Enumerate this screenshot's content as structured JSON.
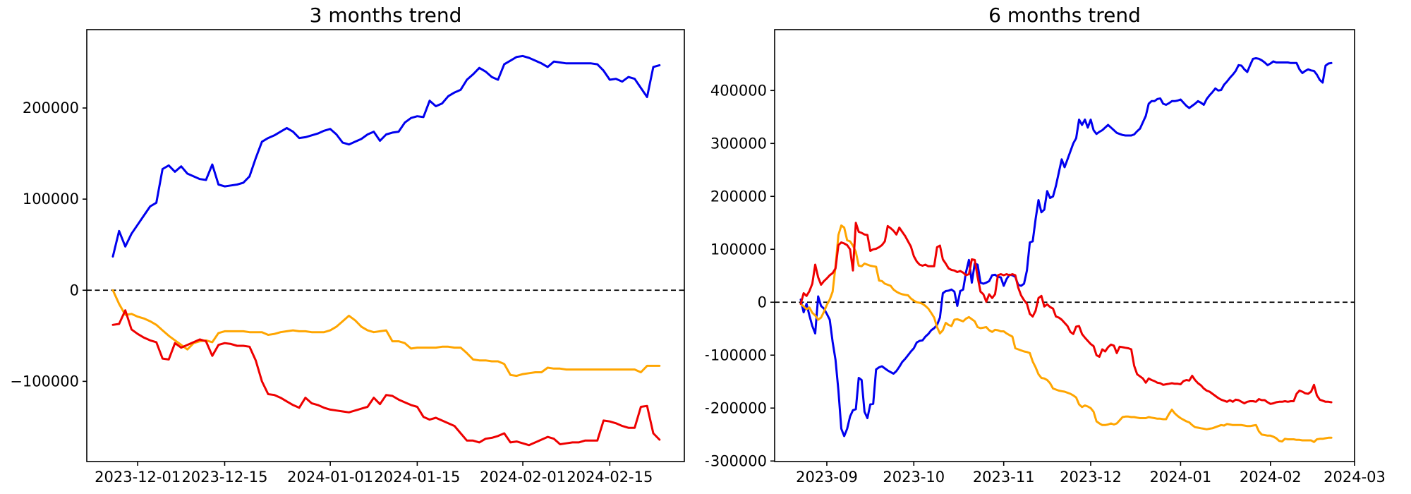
{
  "figure": {
    "background": "#ffffff",
    "text_color": "#000000",
    "zero_line_color": "#000000",
    "spine_color": "#000000"
  },
  "chart_data": [
    {
      "type": "line",
      "title": "3 months trend",
      "x_start_date": "2023-11-27",
      "x_unit": "days_since_start",
      "xlim": [
        -4.2,
        92
      ],
      "ylim": [
        -188000,
        286000
      ],
      "grid": false,
      "legend": "none",
      "zero_line": true,
      "xticks": [
        {
          "label": "2023-12-01",
          "day": 4
        },
        {
          "label": "2023-12-15",
          "day": 18
        },
        {
          "label": "2024-01-01",
          "day": 35
        },
        {
          "label": "2024-01-15",
          "day": 49
        },
        {
          "label": "2024-02-01",
          "day": 66
        },
        {
          "label": "2024-02-15",
          "day": 80
        }
      ],
      "yticks": [
        {
          "value": 200000,
          "label": "200000"
        },
        {
          "value": 100000,
          "label": "100000"
        },
        {
          "value": 0,
          "label": "0"
        },
        {
          "value": -100000,
          "label": "−100000"
        }
      ],
      "series": [
        {
          "name": "blue",
          "color": "#0000ee",
          "values": [
            37000,
            65000,
            48000,
            62000,
            72000,
            82000,
            92000,
            96000,
            133000,
            137000,
            130000,
            136000,
            128000,
            125000,
            122000,
            121000,
            138000,
            116000,
            114000,
            115000,
            116000,
            118000,
            125000,
            145000,
            163000,
            167000,
            170000,
            174000,
            178000,
            174000,
            167000,
            168000,
            170000,
            172000,
            175000,
            177000,
            171000,
            162000,
            160000,
            163000,
            166000,
            171000,
            174000,
            164000,
            171000,
            173000,
            174000,
            184000,
            189000,
            191000,
            190000,
            208000,
            202000,
            205000,
            213000,
            217000,
            220000,
            231000,
            237000,
            244000,
            240000,
            234000,
            231000,
            248000,
            252000,
            256000,
            257000,
            255000,
            252000,
            249000,
            245000,
            251000,
            250000,
            249000,
            249000,
            249000,
            249000,
            249000,
            248000,
            241000,
            231000,
            232000,
            229000,
            234000,
            232000,
            222000,
            212000,
            245000,
            247000
          ]
        },
        {
          "name": "orange",
          "color": "#ffa500",
          "values": [
            0,
            -15000,
            -27000,
            -26000,
            -29000,
            -31000,
            -34000,
            -38000,
            -44000,
            -50000,
            -55000,
            -60000,
            -65000,
            -58000,
            -56000,
            -55000,
            -57000,
            -47000,
            -45000,
            -45000,
            -45000,
            -45000,
            -46000,
            -46000,
            -46000,
            -49000,
            -48000,
            -46000,
            -45000,
            -44000,
            -45000,
            -45000,
            -46000,
            -46000,
            -46000,
            -44000,
            -40000,
            -34000,
            -28000,
            -33000,
            -40000,
            -44000,
            -46000,
            -45000,
            -44000,
            -56000,
            -56000,
            -58000,
            -64000,
            -63000,
            -63000,
            -63000,
            -63000,
            -62000,
            -62000,
            -63000,
            -63000,
            -69000,
            -76000,
            -77000,
            -77000,
            -78000,
            -78000,
            -81000,
            -93000,
            -94000,
            -92000,
            -91000,
            -90000,
            -90000,
            -85000,
            -86000,
            -86000,
            -87000,
            -87000,
            -87000,
            -87000,
            -87000,
            -87000,
            -87000,
            -87000,
            -87000,
            -87000,
            -87000,
            -87000,
            -90000,
            -83000,
            -83000,
            -83000
          ]
        },
        {
          "name": "red",
          "color": "#ee0000",
          "values": [
            -38000,
            -37000,
            -22000,
            -43000,
            -48000,
            -52000,
            -55000,
            -57000,
            -75000,
            -76000,
            -58000,
            -63000,
            -60000,
            -57000,
            -54000,
            -56000,
            -72000,
            -60000,
            -58000,
            -59000,
            -61000,
            -61000,
            -62000,
            -77000,
            -100000,
            -114000,
            -115000,
            -118000,
            -122000,
            -126000,
            -129000,
            -118000,
            -124000,
            -126000,
            -129000,
            -131000,
            -132000,
            -133000,
            -134000,
            -132000,
            -130000,
            -128000,
            -118000,
            -125000,
            -115000,
            -116000,
            -120000,
            -123000,
            -126000,
            -128000,
            -139000,
            -142000,
            -140000,
            -143000,
            -146000,
            -149000,
            -157000,
            -165000,
            -165000,
            -167000,
            -163000,
            -162000,
            -160000,
            -157000,
            -167000,
            -166000,
            -168000,
            -170000,
            -167000,
            -164000,
            -161000,
            -163000,
            -169000,
            -168000,
            -167000,
            -167000,
            -165000,
            -165000,
            -165000,
            -143000,
            -144000,
            -146000,
            -149000,
            -151000,
            -151000,
            -128000,
            -127000,
            -157000,
            -164000
          ]
        }
      ]
    },
    {
      "type": "line",
      "title": "6 months trend",
      "x_start_date": "2023-08-23",
      "x_unit": "days_since_start",
      "xlim": [
        -9,
        191
      ],
      "ylim": [
        -301000,
        515000
      ],
      "grid": false,
      "legend": "none",
      "zero_line": true,
      "xticks": [
        {
          "label": "2023-09",
          "day": 9
        },
        {
          "label": "2023-10",
          "day": 39
        },
        {
          "label": "2023-11",
          "day": 70
        },
        {
          "label": "2023-12",
          "day": 100
        },
        {
          "label": "2024-01",
          "day": 131
        },
        {
          "label": "2024-02",
          "day": 162
        },
        {
          "label": "2024-03",
          "day": 191
        }
      ],
      "yticks": [
        {
          "value": 400000,
          "label": "400000"
        },
        {
          "value": 300000,
          "label": "300000"
        },
        {
          "value": 200000,
          "label": "200000"
        },
        {
          "value": 100000,
          "label": "100000"
        },
        {
          "value": 0,
          "label": "0"
        },
        {
          "value": -100000,
          "label": "−100000"
        },
        {
          "value": -200000,
          "label": "−200000"
        },
        {
          "value": -300000,
          "label": "−300000"
        }
      ],
      "series": [
        {
          "name": "blue",
          "color": "#0000ee",
          "values": [
            5000,
            -19000,
            -3000,
            -25000,
            -45000,
            -59000,
            11000,
            -7000,
            -12000,
            -22000,
            -33000,
            -75000,
            -109000,
            -167000,
            -239000,
            -253000,
            -239000,
            -216000,
            -204000,
            -202000,
            -143000,
            -147000,
            -207000,
            -219000,
            -193000,
            -192000,
            -127000,
            -123000,
            -121000,
            -125000,
            -129000,
            -132000,
            -135000,
            -130000,
            -122000,
            -113000,
            -107000,
            -100000,
            -93000,
            -87000,
            -76000,
            -73000,
            -72000,
            -65000,
            -60000,
            -53000,
            -49000,
            -43000,
            -29000,
            17000,
            21000,
            22000,
            24000,
            20000,
            -7000,
            21000,
            24000,
            57000,
            80000,
            37000,
            73000,
            71000,
            37000,
            35000,
            37000,
            40000,
            51000,
            52000,
            48000,
            47000,
            31000,
            44000,
            52000,
            51000,
            48000,
            33000,
            31000,
            35000,
            60000,
            113000,
            115000,
            157000,
            193000,
            170000,
            175000,
            210000,
            197000,
            200000,
            220000,
            245000,
            270000,
            255000,
            270000,
            285000,
            300000,
            310000,
            345000,
            335000,
            345000,
            330000,
            345000,
            325000,
            318000,
            322000,
            325000,
            330000,
            335000,
            330000,
            325000,
            320000,
            318000,
            316000,
            315000,
            315000,
            315000,
            317000,
            323000,
            328000,
            340000,
            352000,
            375000,
            380000,
            380000,
            384000,
            385000,
            375000,
            373000,
            376000,
            380000,
            380000,
            381000,
            383000,
            377000,
            371000,
            367000,
            371000,
            375000,
            380000,
            377000,
            373000,
            384000,
            391000,
            397000,
            404000,
            400000,
            401000,
            411000,
            417000,
            424000,
            430000,
            437000,
            448000,
            447000,
            440000,
            435000,
            448000,
            460000,
            461000,
            460000,
            457000,
            453000,
            448000,
            451000,
            455000,
            453000,
            453000,
            453000,
            453000,
            453000,
            452000,
            452000,
            452000,
            440000,
            433000,
            437000,
            440000,
            438000,
            437000,
            430000,
            420000,
            415000,
            447000,
            451000,
            452000
          ]
        },
        {
          "name": "orange",
          "color": "#ffa500",
          "values": [
            -3000,
            -8000,
            -13000,
            -10000,
            -20000,
            -25000,
            -33000,
            -29000,
            -18000,
            -5000,
            5000,
            20000,
            68000,
            127000,
            145000,
            141000,
            117000,
            115000,
            107000,
            95000,
            69000,
            68000,
            73000,
            71000,
            69000,
            68000,
            67000,
            41000,
            40000,
            35000,
            33000,
            31000,
            24000,
            20000,
            17000,
            15000,
            14000,
            13000,
            7000,
            3000,
            0,
            -1000,
            -3000,
            -7000,
            -12000,
            -20000,
            -29000,
            -47000,
            -59000,
            -53000,
            -39000,
            -43000,
            -45000,
            -33000,
            -32000,
            -34000,
            -36000,
            -31000,
            -28000,
            -32000,
            -36000,
            -47000,
            -49000,
            -48000,
            -47000,
            -53000,
            -56000,
            -52000,
            -53000,
            -55000,
            -55000,
            -59000,
            -62000,
            -65000,
            -87000,
            -89000,
            -91000,
            -93000,
            -94000,
            -96000,
            -112000,
            -123000,
            -136000,
            -143000,
            -144000,
            -147000,
            -153000,
            -163000,
            -165000,
            -167000,
            -168000,
            -169000,
            -171000,
            -173000,
            -176000,
            -180000,
            -193000,
            -198000,
            -195000,
            -197000,
            -200000,
            -207000,
            -225000,
            -229000,
            -232000,
            -232000,
            -231000,
            -229000,
            -231000,
            -229000,
            -223000,
            -217000,
            -216000,
            -216000,
            -217000,
            -217000,
            -218000,
            -219000,
            -219000,
            -219000,
            -217000,
            -218000,
            -219000,
            -220000,
            -220000,
            -221000,
            -221000,
            -211000,
            -203000,
            -210000,
            -215000,
            -219000,
            -222000,
            -225000,
            -227000,
            -232000,
            -236000,
            -237000,
            -238000,
            -239000,
            -240000,
            -239000,
            -238000,
            -236000,
            -234000,
            -232000,
            -233000,
            -230000,
            -231000,
            -232000,
            -232000,
            -232000,
            -232000,
            -233000,
            -234000,
            -234000,
            -233000,
            -232000,
            -244000,
            -250000,
            -251000,
            -252000,
            -252000,
            -254000,
            -257000,
            -262000,
            -263000,
            -258000,
            -259000,
            -259000,
            -259000,
            -260000,
            -260000,
            -261000,
            -261000,
            -261000,
            -261000,
            -264000,
            -259000,
            -258000,
            -258000,
            -257000,
            -256000,
            -256000
          ]
        },
        {
          "name": "red",
          "color": "#ee0000",
          "values": [
            -3000,
            17000,
            12000,
            21000,
            35000,
            71000,
            47000,
            33000,
            40000,
            45000,
            51000,
            55000,
            64000,
            108000,
            113000,
            111000,
            108000,
            100000,
            60000,
            150000,
            133000,
            131000,
            128000,
            127000,
            97000,
            100000,
            101000,
            104000,
            108000,
            115000,
            144000,
            140000,
            135000,
            128000,
            141000,
            133000,
            125000,
            115000,
            105000,
            87000,
            77000,
            71000,
            69000,
            71000,
            68000,
            68000,
            68000,
            104000,
            107000,
            81000,
            73000,
            64000,
            61000,
            60000,
            57000,
            59000,
            56000,
            51000,
            53000,
            81000,
            80000,
            48000,
            20000,
            15000,
            1000,
            15000,
            8000,
            15000,
            51000,
            53000,
            51000,
            53000,
            51000,
            53000,
            51000,
            28000,
            13000,
            4000,
            -3000,
            -22000,
            -27000,
            -16000,
            8000,
            12000,
            -8000,
            -4000,
            -9000,
            -12000,
            -27000,
            -29000,
            -33000,
            -39000,
            -45000,
            -56000,
            -60000,
            -46000,
            -45000,
            -60000,
            -67000,
            -73000,
            -79000,
            -83000,
            -100000,
            -103000,
            -89000,
            -93000,
            -85000,
            -80000,
            -82000,
            -96000,
            -84000,
            -85000,
            -86000,
            -87000,
            -89000,
            -120000,
            -136000,
            -140000,
            -144000,
            -152000,
            -144000,
            -147000,
            -149000,
            -152000,
            -153000,
            -156000,
            -155000,
            -154000,
            -153000,
            -154000,
            -154000,
            -155000,
            -149000,
            -147000,
            -148000,
            -139000,
            -147000,
            -153000,
            -157000,
            -163000,
            -167000,
            -169000,
            -173000,
            -177000,
            -181000,
            -184000,
            -186000,
            -188000,
            -185000,
            -188000,
            -184000,
            -185000,
            -188000,
            -191000,
            -188000,
            -187000,
            -187000,
            -188000,
            -183000,
            -185000,
            -185000,
            -189000,
            -192000,
            -191000,
            -189000,
            -188000,
            -188000,
            -187000,
            -188000,
            -187000,
            -187000,
            -173000,
            -167000,
            -169000,
            -172000,
            -173000,
            -169000,
            -156000,
            -176000,
            -184000,
            -186000,
            -188000,
            -188000,
            -189000
          ]
        }
      ]
    }
  ]
}
